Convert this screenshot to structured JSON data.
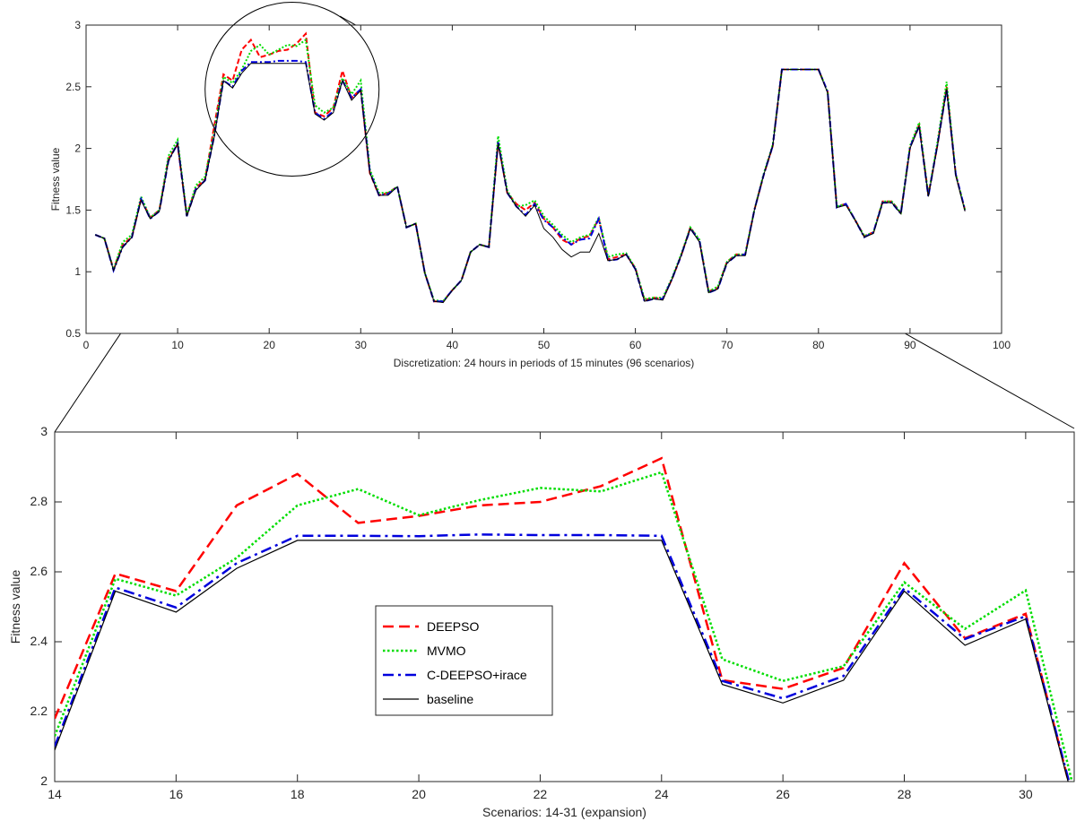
{
  "chart_data": [
    {
      "type": "line",
      "title": "",
      "xlabel": "Discretization: 24 hours in periods of 15 minutes (96 scenarios)",
      "ylabel": "Fitness value",
      "xlim": [
        0,
        100
      ],
      "ylim": [
        0.5,
        3
      ],
      "xticks": [
        "0",
        "10",
        "20",
        "30",
        "40",
        "50",
        "60",
        "70",
        "80",
        "90",
        "100"
      ],
      "yticks": [
        "0.5",
        "1",
        "1.5",
        "2",
        "2.5",
        "3"
      ],
      "x_start": 1,
      "series": [
        {
          "name": "DEEPSO",
          "color": "#ff0000",
          "values": [
            1.3,
            1.27,
            1.02,
            1.22,
            1.28,
            1.59,
            1.44,
            1.5,
            1.92,
            2.03,
            1.46,
            1.68,
            1.75,
            2.18,
            2.6,
            2.55,
            2.8,
            2.88,
            2.74,
            2.76,
            2.79,
            2.8,
            2.85,
            2.93,
            2.29,
            2.26,
            2.33,
            2.63,
            2.41,
            2.48,
            1.8,
            1.62,
            1.64,
            1.69,
            1.36,
            1.39,
            0.99,
            0.76,
            0.76,
            0.85,
            0.93,
            1.16,
            1.22,
            1.2,
            2.05,
            1.64,
            1.55,
            1.5,
            1.56,
            1.43,
            1.36,
            1.26,
            1.22,
            1.27,
            1.29,
            1.43,
            1.1,
            1.12,
            1.14,
            1.03,
            0.77,
            0.79,
            0.78,
            0.94,
            1.13,
            1.36,
            1.25,
            0.84,
            0.87,
            1.08,
            1.14,
            1.14,
            1.5,
            1.78,
            2.02,
            2.64,
            2.64,
            2.64,
            2.64,
            2.64,
            2.46,
            1.53,
            1.55,
            1.42,
            1.29,
            1.32,
            1.57,
            1.57,
            1.48,
            2.01,
            2.19,
            1.62,
            2.03,
            2.5,
            1.79,
            1.5
          ]
        },
        {
          "name": "MVMO",
          "color": "#00dd00",
          "values": [
            1.3,
            1.27,
            1.02,
            1.24,
            1.3,
            1.61,
            1.44,
            1.5,
            1.94,
            2.07,
            1.46,
            1.7,
            1.77,
            2.13,
            2.58,
            2.53,
            2.64,
            2.79,
            2.84,
            2.76,
            2.8,
            2.84,
            2.83,
            2.88,
            2.35,
            2.29,
            2.33,
            2.57,
            2.44,
            2.55,
            1.83,
            1.64,
            1.64,
            1.69,
            1.36,
            1.39,
            0.99,
            0.77,
            0.76,
            0.85,
            0.93,
            1.16,
            1.22,
            1.2,
            2.1,
            1.66,
            1.53,
            1.54,
            1.58,
            1.45,
            1.38,
            1.3,
            1.24,
            1.28,
            1.3,
            1.44,
            1.12,
            1.14,
            1.15,
            1.03,
            0.78,
            0.79,
            0.79,
            0.95,
            1.14,
            1.36,
            1.26,
            0.84,
            0.88,
            1.08,
            1.14,
            1.14,
            1.5,
            1.79,
            2.03,
            2.64,
            2.64,
            2.64,
            2.64,
            2.64,
            2.46,
            1.53,
            1.55,
            1.42,
            1.29,
            1.32,
            1.57,
            1.57,
            1.48,
            2.02,
            2.21,
            1.62,
            2.05,
            2.54,
            1.79,
            1.5
          ]
        },
        {
          "name": "C-DEEPSO+irace",
          "color": "#0000dd",
          "values": [
            1.3,
            1.27,
            1.01,
            1.2,
            1.28,
            1.59,
            1.43,
            1.49,
            1.9,
            2.04,
            1.45,
            1.67,
            1.74,
            2.1,
            2.55,
            2.5,
            2.63,
            2.7,
            2.7,
            2.7,
            2.71,
            2.71,
            2.71,
            2.7,
            2.29,
            2.24,
            2.3,
            2.55,
            2.41,
            2.48,
            1.81,
            1.62,
            1.63,
            1.69,
            1.36,
            1.39,
            0.99,
            0.76,
            0.76,
            0.85,
            0.93,
            1.16,
            1.22,
            1.2,
            2.05,
            1.64,
            1.53,
            1.46,
            1.55,
            1.42,
            1.36,
            1.28,
            1.22,
            1.26,
            1.27,
            1.43,
            1.09,
            1.1,
            1.14,
            1.02,
            0.76,
            0.78,
            0.78,
            0.94,
            1.13,
            1.35,
            1.25,
            0.83,
            0.86,
            1.07,
            1.13,
            1.14,
            1.5,
            1.78,
            2.02,
            2.64,
            2.64,
            2.64,
            2.64,
            2.64,
            2.46,
            1.52,
            1.55,
            1.42,
            1.28,
            1.32,
            1.56,
            1.56,
            1.47,
            2.01,
            2.18,
            1.61,
            2.03,
            2.48,
            1.79,
            1.5
          ]
        },
        {
          "name": "baseline",
          "color": "#000000",
          "values": [
            1.3,
            1.27,
            1.01,
            1.2,
            1.28,
            1.58,
            1.43,
            1.49,
            1.9,
            2.04,
            1.45,
            1.66,
            1.74,
            2.09,
            2.55,
            2.49,
            2.61,
            2.69,
            2.69,
            2.69,
            2.69,
            2.69,
            2.69,
            2.69,
            2.28,
            2.23,
            2.29,
            2.55,
            2.39,
            2.47,
            1.8,
            1.62,
            1.62,
            1.69,
            1.36,
            1.39,
            0.99,
            0.76,
            0.75,
            0.85,
            0.93,
            1.16,
            1.22,
            1.2,
            2.04,
            1.64,
            1.53,
            1.45,
            1.54,
            1.35,
            1.28,
            1.18,
            1.12,
            1.16,
            1.16,
            1.31,
            1.09,
            1.1,
            1.14,
            1.02,
            0.76,
            0.78,
            0.77,
            0.94,
            1.13,
            1.35,
            1.24,
            0.83,
            0.86,
            1.07,
            1.13,
            1.13,
            1.5,
            1.78,
            2.02,
            2.64,
            2.64,
            2.64,
            2.64,
            2.64,
            2.45,
            1.52,
            1.54,
            1.42,
            1.28,
            1.31,
            1.56,
            1.56,
            1.47,
            2.0,
            2.18,
            1.61,
            2.02,
            2.48,
            1.78,
            1.49
          ]
        }
      ]
    },
    {
      "type": "line",
      "title": "",
      "xlabel": "Scenarios: 14-31 (expansion)",
      "ylabel": "Fitness value",
      "xlim": [
        14,
        30.8
      ],
      "ylim": [
        2,
        3
      ],
      "xticks": [
        "14",
        "16",
        "18",
        "20",
        "22",
        "24",
        "26",
        "28",
        "30"
      ],
      "yticks": [
        "2",
        "2.2",
        "2.4",
        "2.6",
        "2.8",
        "3"
      ],
      "x": [
        14,
        15,
        16,
        17,
        18,
        19,
        20,
        21,
        22,
        23,
        24,
        25,
        26,
        27,
        28,
        29,
        30,
        31
      ],
      "legend": {
        "position": "center",
        "entries": [
          "DEEPSO",
          "MVMO",
          "C-DEEPSO+irace",
          "baseline"
        ]
      },
      "series": [
        {
          "name": "DEEPSO",
          "color": "#ff0000",
          "style": "dashed",
          "values": [
            2.18,
            2.595,
            2.545,
            2.79,
            2.88,
            2.74,
            2.76,
            2.79,
            2.8,
            2.845,
            2.925,
            2.29,
            2.265,
            2.325,
            2.625,
            2.41,
            2.48,
            1.8
          ]
        },
        {
          "name": "MVMO",
          "color": "#00dd00",
          "style": "dotted",
          "values": [
            2.13,
            2.58,
            2.532,
            2.64,
            2.79,
            2.837,
            2.762,
            2.805,
            2.84,
            2.83,
            2.885,
            2.35,
            2.288,
            2.33,
            2.57,
            2.437,
            2.547,
            1.83
          ]
        },
        {
          "name": "C-DEEPSO+irace",
          "color": "#0000dd",
          "style": "dashdot",
          "values": [
            2.1,
            2.555,
            2.498,
            2.625,
            2.703,
            2.703,
            2.702,
            2.707,
            2.705,
            2.705,
            2.703,
            2.288,
            2.238,
            2.302,
            2.553,
            2.408,
            2.473,
            1.81
          ]
        },
        {
          "name": "baseline",
          "color": "#000000",
          "style": "solid",
          "values": [
            2.09,
            2.545,
            2.485,
            2.61,
            2.69,
            2.69,
            2.69,
            2.69,
            2.69,
            2.69,
            2.69,
            2.278,
            2.225,
            2.29,
            2.545,
            2.39,
            2.465,
            1.8
          ]
        }
      ]
    }
  ],
  "zoom_marker": {
    "center_x": 22.5,
    "center_y": 2.48
  }
}
